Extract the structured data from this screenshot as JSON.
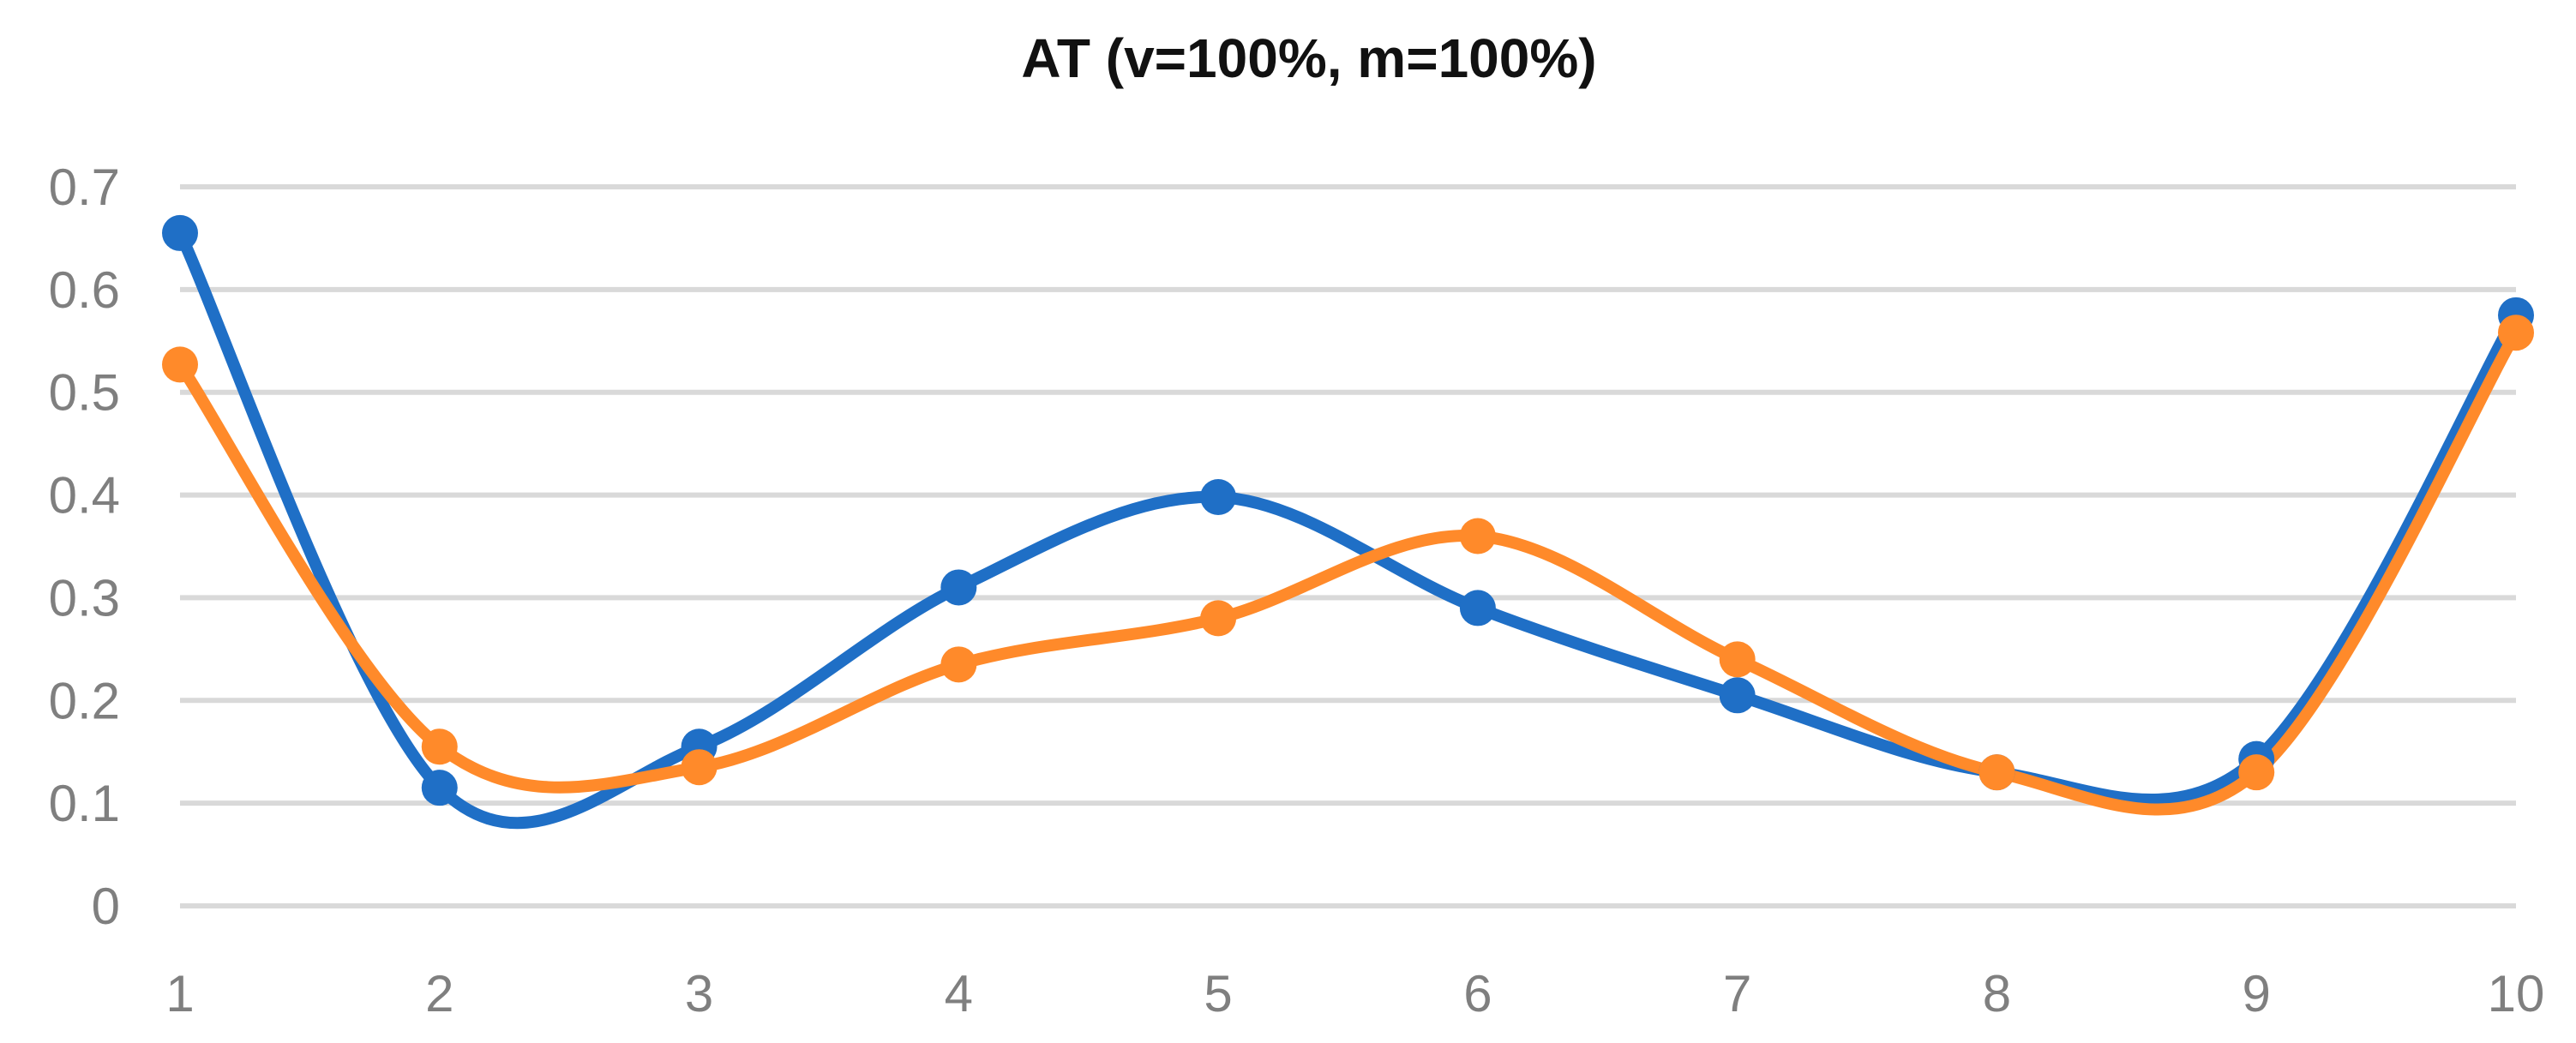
{
  "chart_data": {
    "type": "line",
    "title": "AT (v=100%, m=100%)",
    "xlabel": "",
    "ylabel": "",
    "x": [
      1,
      2,
      3,
      4,
      5,
      6,
      7,
      8,
      9,
      10
    ],
    "ylim": [
      0,
      0.7
    ],
    "yticks": [
      "0",
      "0.1",
      "0.2",
      "0.3",
      "0.4",
      "0.5",
      "0.6",
      "0.7"
    ],
    "xticks": [
      "1",
      "2",
      "3",
      "4",
      "5",
      "6",
      "7",
      "8",
      "9",
      "10"
    ],
    "grid": true,
    "legend": "none",
    "smooth": true,
    "series": [
      {
        "color": "#1f6fc6",
        "values": [
          0.655,
          0.115,
          0.155,
          0.31,
          0.398,
          0.29,
          0.205,
          0.13,
          0.143,
          0.575
        ]
      },
      {
        "color": "#ff8a2a",
        "values": [
          0.527,
          0.155,
          0.135,
          0.235,
          0.28,
          0.36,
          0.24,
          0.13,
          0.13,
          0.558
        ]
      }
    ]
  }
}
